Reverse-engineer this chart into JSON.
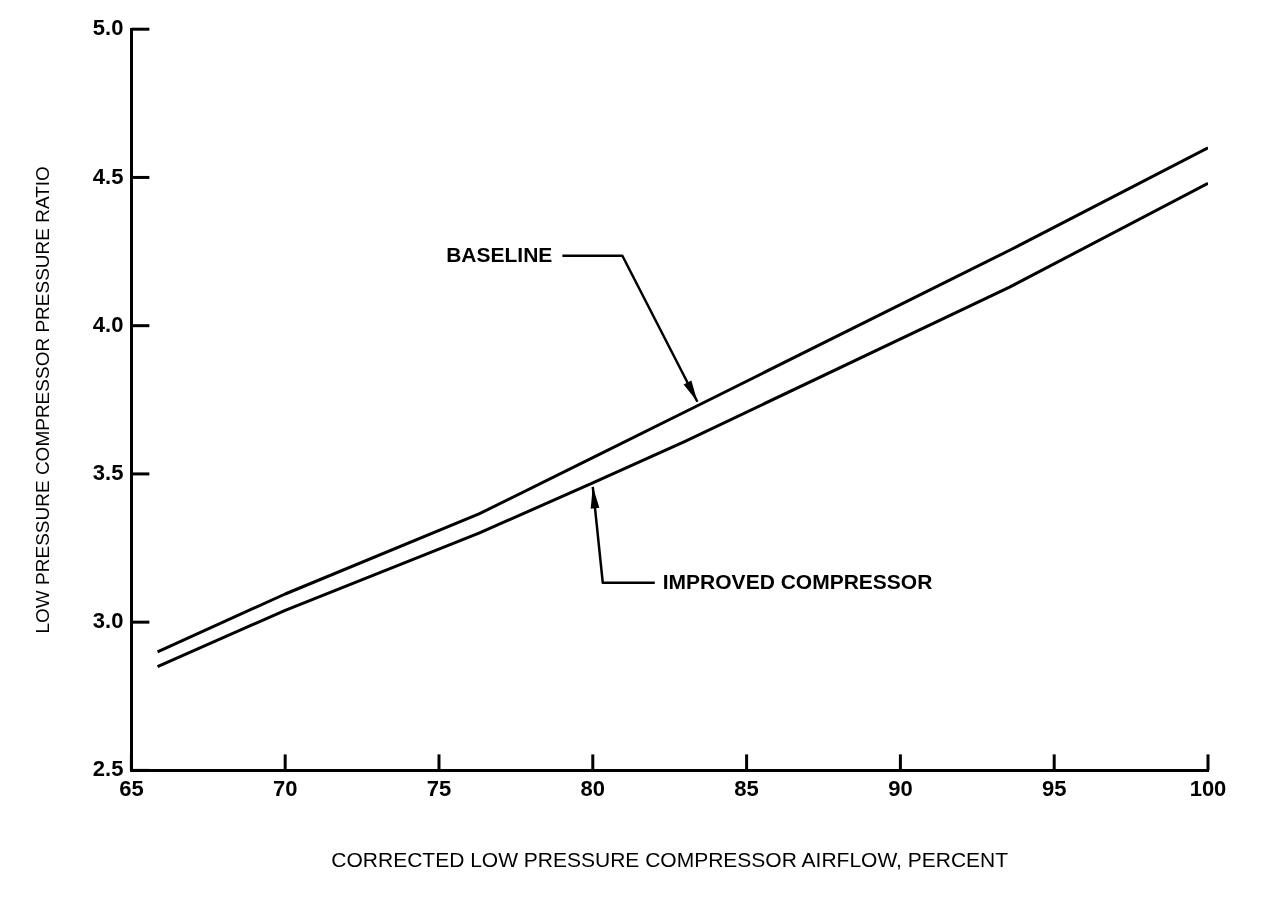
{
  "chart_data": {
    "type": "line",
    "xlabel": "CORRECTED LOW PRESSURE COMPRESSOR AIRFLOW, PERCENT",
    "ylabel": "LOW PRESSURE COMPRESSOR PRESSURE RATIO",
    "xlim": [
      65,
      100
    ],
    "xticks": [
      65,
      70,
      75,
      80,
      85,
      90,
      95,
      100
    ],
    "ylim": [
      2.5,
      5.0
    ],
    "yticks": [
      {
        "value": 2.5,
        "label": "2.5"
      },
      {
        "value": 3.0,
        "label": "3.0"
      },
      {
        "value": 3.5,
        "label": "3.5"
      },
      {
        "value": 4.0,
        "label": "4.0"
      },
      {
        "value": 4.5,
        "label": "4.5"
      },
      {
        "value": 5.0,
        "label": "5.0"
      }
    ],
    "grid": false,
    "legend": false,
    "marker": "none",
    "line_style": "solid",
    "annotations": [
      {
        "text": "BASELINE",
        "x": 83.4,
        "y": 3.73
      },
      {
        "text": "IMPROVED COMPRESSOR",
        "x": 80,
        "y": 3.47
      }
    ],
    "series": [
      {
        "color": "#000000",
        "x": [
          65.85,
          70,
          76.3,
          80,
          83.4,
          93.6,
          100
        ],
        "values": [
          2.9,
          3.095,
          3.365,
          3.555,
          3.73,
          4.257,
          4.6
        ]
      },
      {
        "color": "#000000",
        "x": [
          65.85,
          70,
          76.3,
          80,
          83,
          93.55,
          100
        ],
        "values": [
          2.85,
          3.04,
          3.3,
          3.47,
          3.61,
          4.13,
          4.48
        ]
      }
    ]
  }
}
